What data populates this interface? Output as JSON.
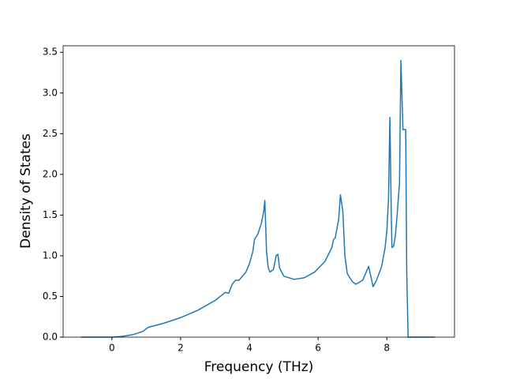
{
  "chart_data": {
    "type": "line",
    "xlabel": "Frequency (THz)",
    "ylabel": "Density of States",
    "xlim": [
      -1.42,
      9.97
    ],
    "ylim": [
      0,
      3.58
    ],
    "xticks": [
      0,
      2,
      4,
      6,
      8
    ],
    "yticks": [
      {
        "value": 0,
        "label": "0.0"
      },
      {
        "value": 0.5,
        "label": "0.5"
      },
      {
        "value": 1,
        "label": "1.0"
      },
      {
        "value": 1.5,
        "label": "1.5"
      },
      {
        "value": 2,
        "label": "2.0"
      },
      {
        "value": 2.5,
        "label": "2.5"
      },
      {
        "value": 3,
        "label": "3.0"
      },
      {
        "value": 3.5,
        "label": "3.5"
      }
    ],
    "x": [
      -0.9,
      0,
      0.3,
      0.6,
      0.9,
      1.05,
      1.5,
      2,
      2.5,
      3,
      3.3,
      3.4,
      3.5,
      3.6,
      3.7,
      3.9,
      4.0,
      4.1,
      4.15,
      4.25,
      4.35,
      4.42,
      4.45,
      4.5,
      4.55,
      4.6,
      4.7,
      4.78,
      4.83,
      4.88,
      5.0,
      5.3,
      5.6,
      5.9,
      6.2,
      6.4,
      6.45,
      6.5,
      6.6,
      6.65,
      6.72,
      6.78,
      6.85,
      7.0,
      7.1,
      7.3,
      7.4,
      7.47,
      7.55,
      7.6,
      7.7,
      7.85,
      7.95,
      8.0,
      8.05,
      8.09,
      8.13,
      8.15,
      8.2,
      8.25,
      8.3,
      8.37,
      8.41,
      8.47,
      8.55,
      8.58,
      8.62,
      9.4
    ],
    "series": [
      {
        "color": "#1f77b4",
        "values": [
          0,
          0,
          0.01,
          0.03,
          0.07,
          0.12,
          0.17,
          0.24,
          0.33,
          0.45,
          0.55,
          0.54,
          0.65,
          0.7,
          0.7,
          0.8,
          0.9,
          1.05,
          1.2,
          1.27,
          1.4,
          1.55,
          1.68,
          1.05,
          0.85,
          0.8,
          0.83,
          1.0,
          1.02,
          0.85,
          0.75,
          0.71,
          0.73,
          0.8,
          0.93,
          1.1,
          1.2,
          1.22,
          1.45,
          1.75,
          1.55,
          1.0,
          0.78,
          0.68,
          0.65,
          0.7,
          0.8,
          0.87,
          0.72,
          0.62,
          0.7,
          0.87,
          1.1,
          1.3,
          1.7,
          2.7,
          1.5,
          1.1,
          1.12,
          1.25,
          1.5,
          1.9,
          3.4,
          2.55,
          2.55,
          0.8,
          0,
          0
        ]
      }
    ]
  }
}
